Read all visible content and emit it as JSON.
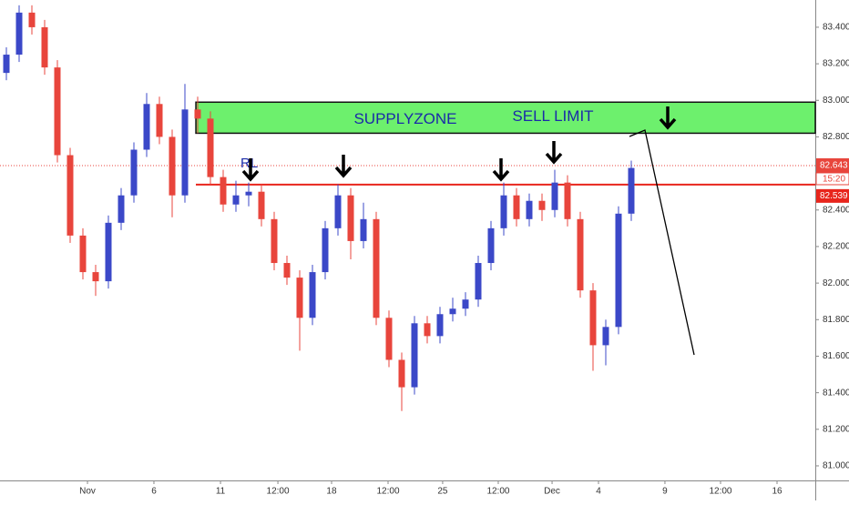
{
  "chart_data": {
    "type": "candlestick",
    "x": [
      0,
      1,
      2,
      3,
      4,
      5,
      6,
      7,
      8,
      9,
      10,
      11,
      12,
      13,
      14,
      15,
      16,
      17,
      18,
      19,
      20,
      21,
      22,
      23,
      24,
      25,
      26,
      27,
      28,
      29,
      30,
      31,
      32,
      33,
      34,
      35,
      36,
      37,
      38,
      39,
      40,
      41,
      42,
      43,
      44,
      45,
      46,
      47,
      48,
      49
    ],
    "open": [
      83.15,
      83.25,
      83.48,
      83.4,
      83.18,
      82.7,
      82.26,
      82.06,
      82.01,
      82.33,
      82.48,
      82.73,
      82.98,
      82.8,
      82.48,
      82.95,
      82.9,
      82.58,
      82.43,
      82.48,
      82.5,
      82.35,
      82.11,
      82.03,
      81.81,
      82.06,
      82.3,
      82.48,
      82.23,
      82.35,
      81.81,
      81.58,
      81.43,
      81.78,
      81.71,
      81.83,
      81.86,
      81.91,
      82.11,
      82.3,
      82.48,
      82.35,
      82.45,
      82.4,
      82.55,
      82.35,
      81.96,
      81.66,
      81.76,
      82.38
    ],
    "high": [
      83.29,
      83.52,
      83.52,
      83.44,
      83.22,
      82.74,
      82.3,
      82.1,
      82.37,
      82.52,
      82.77,
      83.04,
      83.02,
      82.84,
      83.09,
      83.02,
      82.94,
      82.62,
      82.56,
      82.55,
      82.54,
      82.39,
      82.15,
      82.07,
      82.1,
      82.34,
      82.54,
      82.52,
      82.44,
      82.39,
      81.85,
      81.62,
      81.82,
      81.82,
      81.87,
      81.92,
      81.95,
      82.15,
      82.34,
      82.55,
      82.52,
      82.49,
      82.49,
      82.62,
      82.59,
      82.39,
      82.0,
      81.8,
      82.42,
      82.67
    ],
    "low": [
      83.11,
      83.21,
      83.36,
      83.14,
      82.66,
      82.22,
      82.02,
      81.93,
      81.97,
      82.29,
      82.44,
      82.69,
      82.76,
      82.36,
      82.44,
      82.82,
      82.54,
      82.39,
      82.39,
      82.42,
      82.31,
      82.07,
      81.99,
      81.63,
      81.77,
      82.02,
      82.26,
      82.13,
      82.19,
      81.77,
      81.54,
      81.3,
      81.39,
      81.67,
      81.67,
      81.79,
      81.82,
      81.87,
      82.07,
      82.26,
      82.31,
      82.31,
      82.34,
      82.36,
      82.31,
      81.92,
      81.52,
      81.55,
      81.72,
      82.34
    ],
    "close": [
      83.25,
      83.48,
      83.4,
      83.18,
      82.7,
      82.26,
      82.06,
      82.01,
      82.33,
      82.48,
      82.73,
      82.98,
      82.8,
      82.48,
      82.95,
      82.9,
      82.58,
      82.43,
      82.48,
      82.5,
      82.35,
      82.11,
      82.03,
      81.81,
      82.06,
      82.3,
      82.48,
      82.23,
      82.35,
      81.81,
      81.58,
      81.43,
      81.78,
      81.71,
      81.83,
      81.86,
      81.91,
      82.11,
      82.3,
      82.48,
      82.35,
      82.45,
      82.4,
      82.55,
      82.35,
      81.96,
      81.66,
      81.76,
      82.38,
      82.63
    ],
    "up_color": "#3b48c8",
    "down_color": "#e8453c",
    "xlim": [
      -0.5,
      63.43
    ],
    "ylim": [
      80.96,
      83.549
    ],
    "xticks": [
      {
        "value": 6.36,
        "label": "Nov"
      },
      {
        "value": 11.57,
        "label": "6"
      },
      {
        "value": 16.79,
        "label": "11"
      },
      {
        "value": 21.29,
        "label": "12:00"
      },
      {
        "value": 25.5,
        "label": "18"
      },
      {
        "value": 29.93,
        "label": "12:00"
      },
      {
        "value": 34.21,
        "label": "25"
      },
      {
        "value": 38.57,
        "label": "12:00"
      },
      {
        "value": 42.79,
        "label": "Dec"
      },
      {
        "value": 46.43,
        "label": "4"
      },
      {
        "value": 51.64,
        "label": "9"
      },
      {
        "value": 56,
        "label": "12:00"
      },
      {
        "value": 60.43,
        "label": "16"
      }
    ],
    "yticks": [
      {
        "value": 81.0,
        "label": "81.000"
      },
      {
        "value": 81.2,
        "label": "81.200"
      },
      {
        "value": 81.4,
        "label": "81.400"
      },
      {
        "value": 81.6,
        "label": "81.600"
      },
      {
        "value": 81.8,
        "label": "81.800"
      },
      {
        "value": 82.0,
        "label": "82.000"
      },
      {
        "value": 82.2,
        "label": "82.200"
      },
      {
        "value": 82.4,
        "label": "82.400"
      },
      {
        "value": 82.6,
        "label": "82.600"
      },
      {
        "value": 82.8,
        "label": "82.800"
      },
      {
        "value": 83.0,
        "label": "83.000"
      },
      {
        "value": 83.2,
        "label": "83.200"
      },
      {
        "value": 83.4,
        "label": "83.400"
      }
    ],
    "zone": {
      "label": "SUPPLYZONE",
      "order_label": "SELL LIMIT",
      "from": 82.82,
      "to": 82.99,
      "x_start": 14.86
    },
    "level": {
      "value": 82.539,
      "label": "82.539"
    },
    "last_price": {
      "value": 82.643,
      "label": "82.643",
      "time": "15:20"
    },
    "annotation": "RL"
  }
}
